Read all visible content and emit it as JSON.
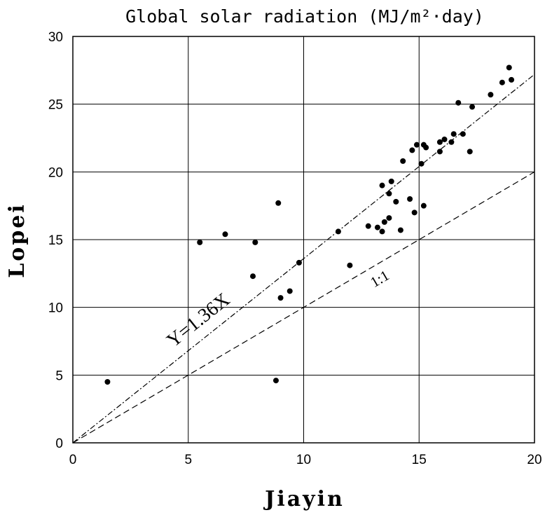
{
  "chart_data": {
    "type": "scatter",
    "title": "Global solar radiation (MJ/m²·day)",
    "xlabel": "Jiayin",
    "ylabel": "Lopei",
    "xlim": [
      0,
      20
    ],
    "ylim": [
      0,
      30
    ],
    "xticks": [
      0,
      5,
      10,
      15,
      20
    ],
    "yticks": [
      0,
      5,
      10,
      15,
      20,
      25,
      30
    ],
    "grid": true,
    "points": [
      [
        1.5,
        4.5
      ],
      [
        5.5,
        14.8
      ],
      [
        6.6,
        15.4
      ],
      [
        7.8,
        12.3
      ],
      [
        7.9,
        14.8
      ],
      [
        8.8,
        4.6
      ],
      [
        8.9,
        17.7
      ],
      [
        9.0,
        10.7
      ],
      [
        9.4,
        11.2
      ],
      [
        9.8,
        13.3
      ],
      [
        11.5,
        15.6
      ],
      [
        12.0,
        13.1
      ],
      [
        12.8,
        16.0
      ],
      [
        13.2,
        15.9
      ],
      [
        13.4,
        15.6
      ],
      [
        13.4,
        19.0
      ],
      [
        13.5,
        16.3
      ],
      [
        13.7,
        18.4
      ],
      [
        13.7,
        16.6
      ],
      [
        13.8,
        19.3
      ],
      [
        14.0,
        17.8
      ],
      [
        14.2,
        15.7
      ],
      [
        14.3,
        20.8
      ],
      [
        14.6,
        18.0
      ],
      [
        14.7,
        21.6
      ],
      [
        14.8,
        17.0
      ],
      [
        14.9,
        22.0
      ],
      [
        15.1,
        20.6
      ],
      [
        15.2,
        22.0
      ],
      [
        15.2,
        17.5
      ],
      [
        15.3,
        21.8
      ],
      [
        15.9,
        22.2
      ],
      [
        15.9,
        21.5
      ],
      [
        16.1,
        22.4
      ],
      [
        16.4,
        22.2
      ],
      [
        16.5,
        22.8
      ],
      [
        16.7,
        25.1
      ],
      [
        16.9,
        22.8
      ],
      [
        17.2,
        21.5
      ],
      [
        17.3,
        24.8
      ],
      [
        18.1,
        25.7
      ],
      [
        18.6,
        26.6
      ],
      [
        18.9,
        27.7
      ],
      [
        19.0,
        26.8
      ]
    ],
    "reference_lines": [
      {
        "label": "Y=1.36X",
        "slope": 1.36,
        "style": "dash-dot"
      },
      {
        "label": "1:1",
        "slope": 1.0,
        "style": "dashed"
      }
    ]
  }
}
